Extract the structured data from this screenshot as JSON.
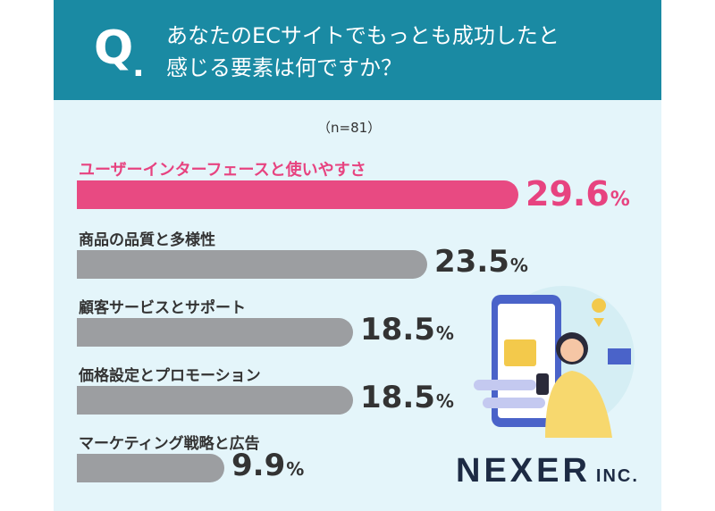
{
  "question": {
    "letter": "Q",
    "dot": ".",
    "line1": "あなたのECサイトでもっとも成功したと",
    "line2": "感じる要素は何ですか？"
  },
  "sample_note": "（n=81）",
  "logo": {
    "main": "NEXER",
    "suffix": "INC."
  },
  "colors": {
    "header": "#1a8aa3",
    "panel": "#e4f5fa",
    "highlight": "#e84a82",
    "bar": "#9c9ea1"
  },
  "chart_data": {
    "type": "bar",
    "orientation": "horizontal",
    "unit": "%",
    "categories": [
      "ユーザーインターフェースと使いやすさ",
      "商品の品質と多様性",
      "顧客サービスとサポート",
      "価格設定とプロモーション",
      "マーケティング戦略と広告"
    ],
    "values": [
      29.6,
      23.5,
      18.5,
      18.5,
      9.9
    ],
    "value_labels": [
      "29.6",
      "23.5",
      "18.5",
      "18.5",
      "9.9"
    ],
    "highlight_index": 0,
    "xlim": [
      0,
      29.6
    ]
  }
}
